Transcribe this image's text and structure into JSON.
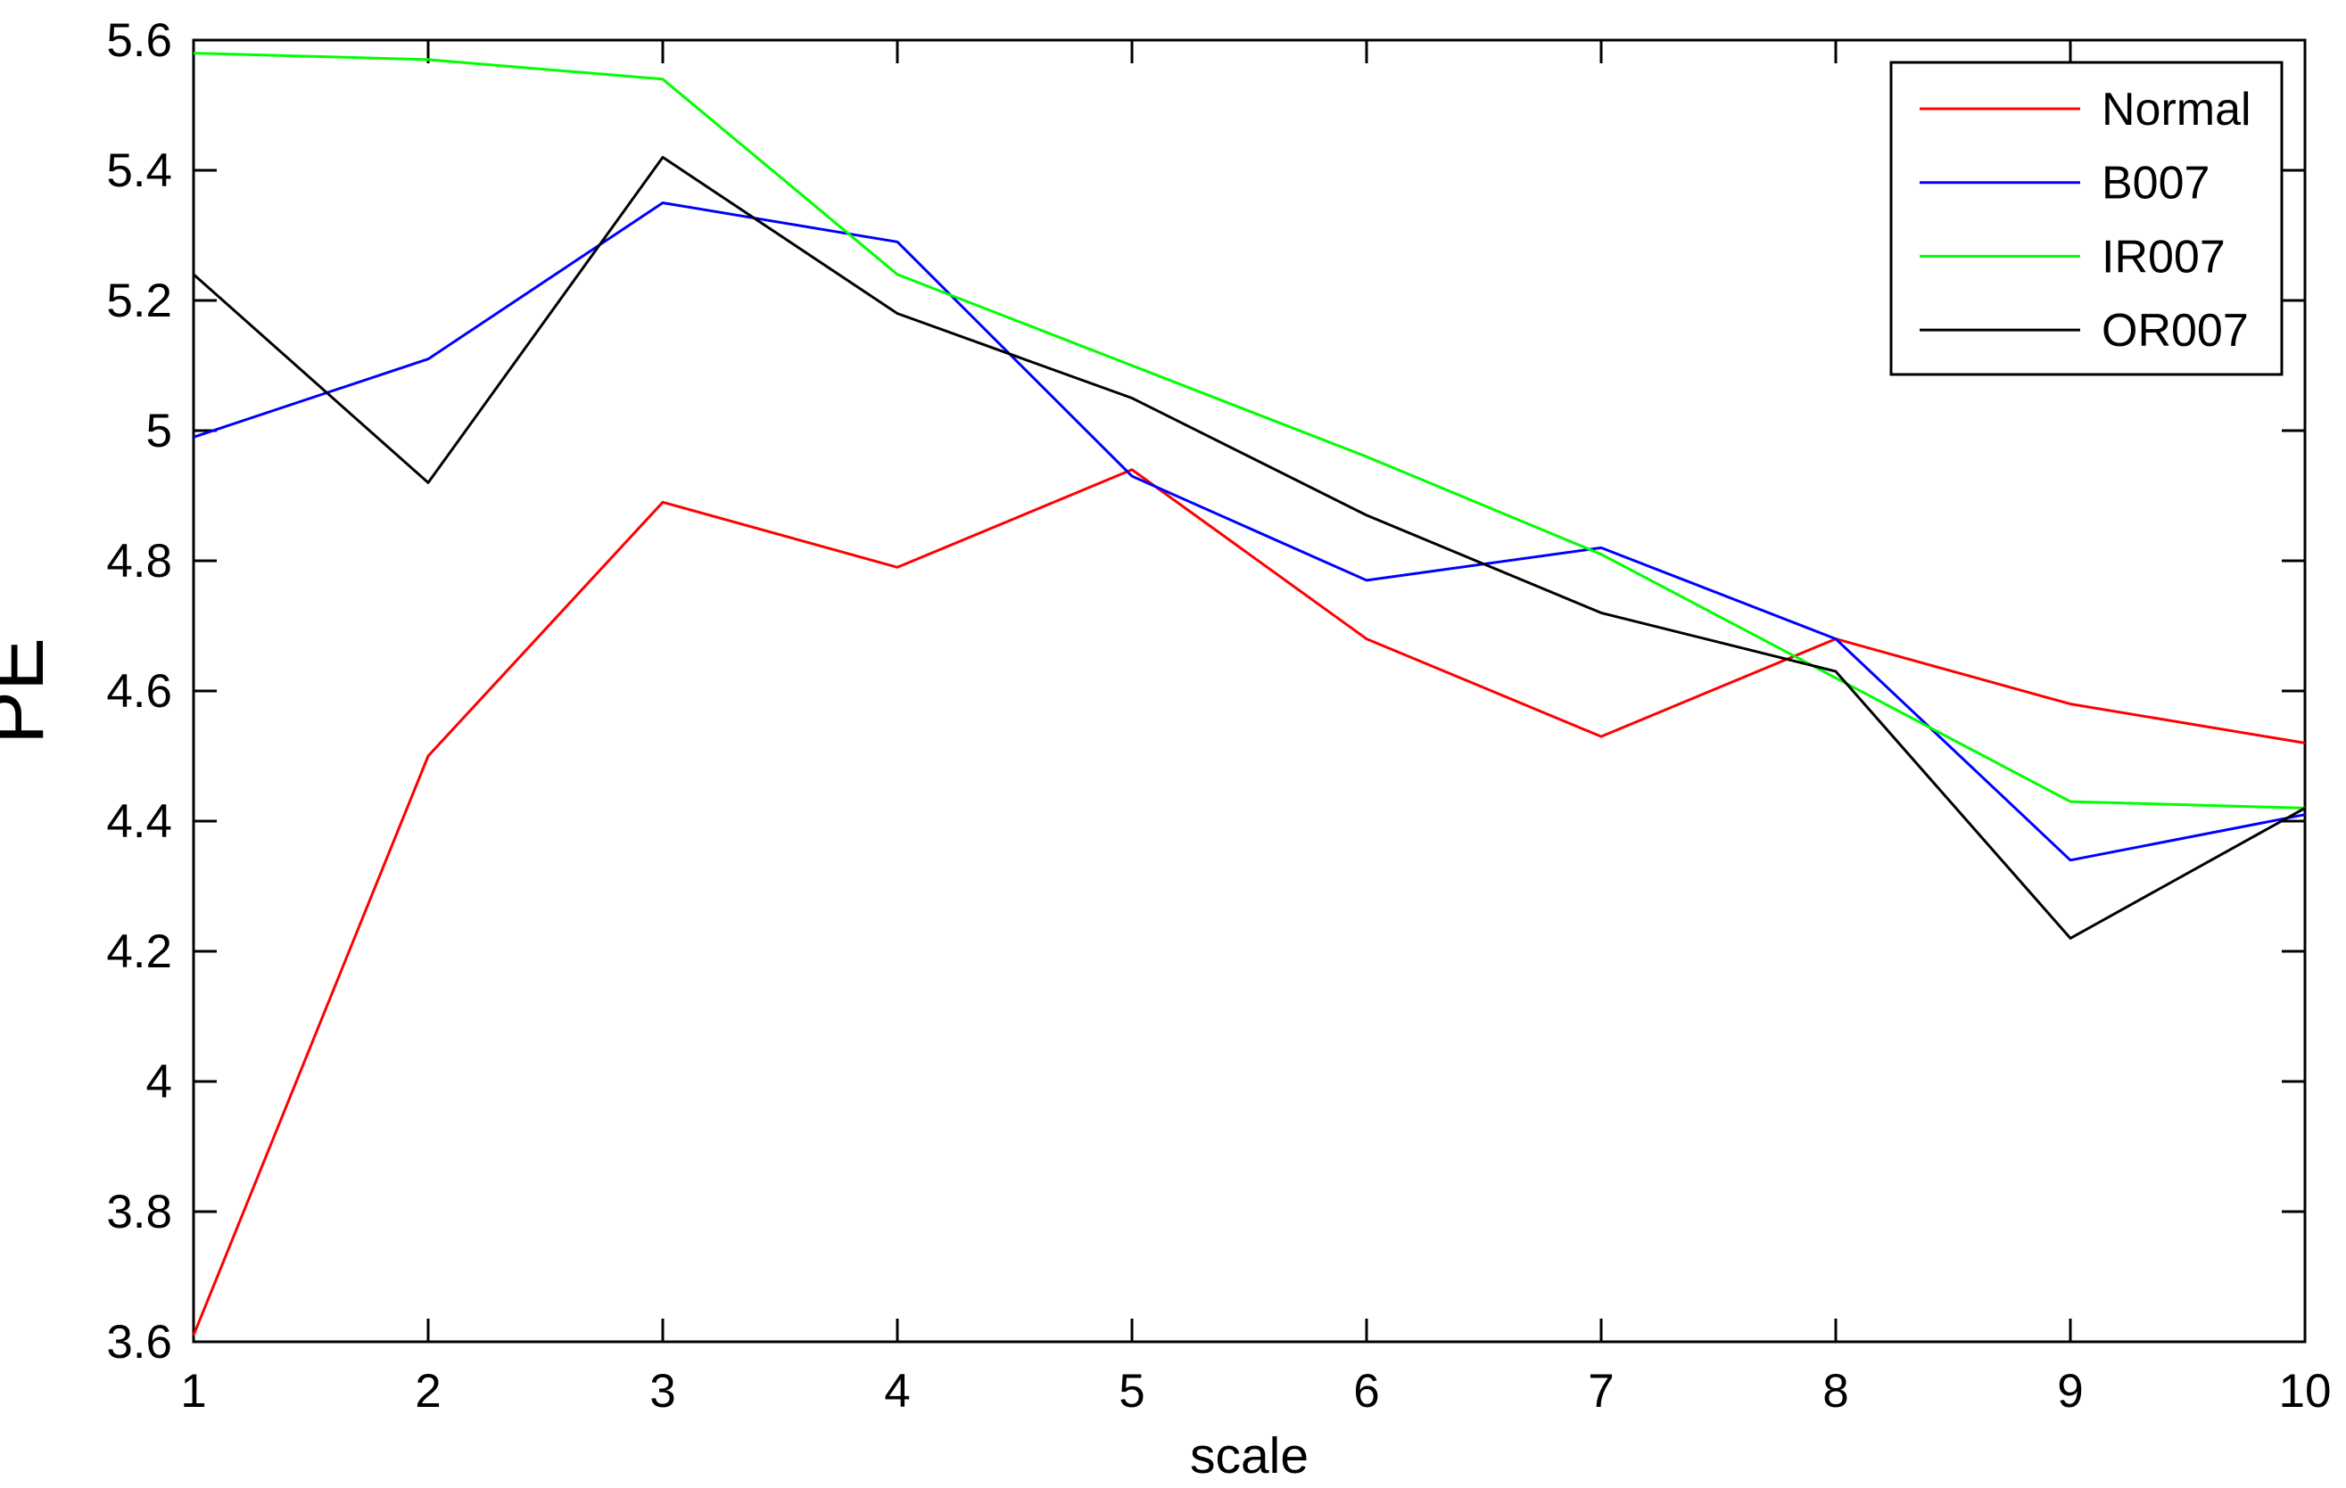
{
  "figure": {
    "background": "#ffffff",
    "axis_color": "#000000"
  },
  "chart_data": {
    "type": "line",
    "title": "",
    "xlabel": "scale",
    "ylabel": "PE",
    "xlim": [
      1,
      10
    ],
    "ylim": [
      3.6,
      5.6
    ],
    "grid": false,
    "x": [
      1,
      2,
      3,
      4,
      5,
      6,
      7,
      8,
      9,
      10
    ],
    "x_tick_labels": [
      "1",
      "2",
      "3",
      "4",
      "5",
      "6",
      "7",
      "8",
      "9",
      "10"
    ],
    "y_tick_values": [
      3.6,
      3.8,
      4.0,
      4.2,
      4.4,
      4.6,
      4.8,
      5.0,
      5.2,
      5.4,
      5.6
    ],
    "y_tick_labels": [
      "3.6",
      "3.8",
      "4",
      "4.2",
      "4.4",
      "4.6",
      "4.8",
      "5",
      "5.2",
      "5.4",
      "5.6"
    ],
    "legend_position": "top-right",
    "series": [
      {
        "name": "Normal",
        "color": "#ff0000",
        "values": [
          3.61,
          4.5,
          4.89,
          4.79,
          4.94,
          4.68,
          4.53,
          4.68,
          4.58,
          4.52
        ]
      },
      {
        "name": "B007",
        "color": "#0000ff",
        "values": [
          4.99,
          5.11,
          5.35,
          5.29,
          4.93,
          4.77,
          4.82,
          4.68,
          4.34,
          4.41
        ]
      },
      {
        "name": "IR007",
        "color": "#00ff00",
        "values": [
          5.58,
          5.57,
          5.54,
          5.24,
          5.1,
          4.96,
          4.81,
          4.62,
          4.43,
          4.42
        ]
      },
      {
        "name": "OR007",
        "color": "#000000",
        "values": [
          5.24,
          4.92,
          5.42,
          5.18,
          5.05,
          4.87,
          4.72,
          4.63,
          4.22,
          4.42
        ]
      }
    ]
  }
}
